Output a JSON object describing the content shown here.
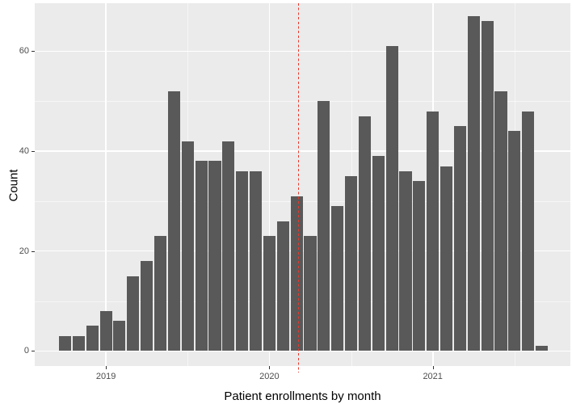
{
  "figure": {
    "background": "#ffffff",
    "panel_background": "#ebebeb",
    "grid_major_color": "#ffffff",
    "grid_minor_color": "#ffffff",
    "tick_label_color": "#4d4d4d",
    "tick_mark_color": "#333333",
    "axis_title_color": "#000000"
  },
  "chart_data": {
    "type": "bar",
    "title": "",
    "xlabel": "Patient enrollments by month",
    "ylabel": "Count",
    "months": [
      "2018-10",
      "2018-11",
      "2018-12",
      "2019-01",
      "2019-02",
      "2019-03",
      "2019-04",
      "2019-05",
      "2019-06",
      "2019-07",
      "2019-08",
      "2019-09",
      "2019-10",
      "2019-11",
      "2019-12",
      "2020-01",
      "2020-02",
      "2020-03",
      "2020-04",
      "2020-05",
      "2020-06",
      "2020-07",
      "2020-08",
      "2020-09",
      "2020-10",
      "2020-11",
      "2020-12",
      "2021-01",
      "2021-02",
      "2021-03",
      "2021-04",
      "2021-05",
      "2021-06",
      "2021-07",
      "2021-08",
      "2021-09"
    ],
    "values": [
      3,
      3,
      5,
      8,
      6,
      15,
      18,
      23,
      52,
      42,
      38,
      38,
      42,
      36,
      36,
      23,
      26,
      31,
      23,
      50,
      29,
      35,
      47,
      39,
      61,
      36,
      34,
      48,
      37,
      45,
      67,
      66,
      52,
      44,
      48,
      1
    ],
    "bar_color": "#595959",
    "x_ticks": [
      {
        "label": "2019",
        "month_index": 3
      },
      {
        "label": "2020",
        "month_index": 15
      },
      {
        "label": "2021",
        "month_index": 27
      }
    ],
    "x_minor_month_indices": [
      9,
      21,
      33
    ],
    "y_ticks": [
      0,
      20,
      40,
      60
    ],
    "y_minor_ticks": [
      10,
      30,
      50
    ],
    "ylim": [
      0,
      69
    ],
    "grid": true,
    "legend": false,
    "vline": {
      "month_index_position": 17.15,
      "approx_date": "2020-03",
      "color": "#e8392d",
      "style": "dashed"
    }
  }
}
